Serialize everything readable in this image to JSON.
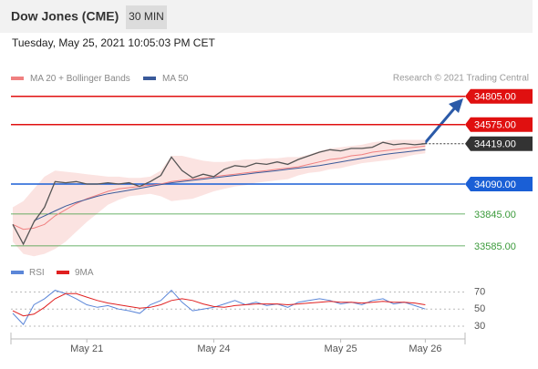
{
  "header": {
    "title": "Dow Jones (CME)",
    "interval": "30 MIN",
    "timestamp": "Tuesday, May 25, 2021 10:05:03 PM CET",
    "credit": "Research © 2021 Trading Central"
  },
  "chart_data": [
    {
      "type": "line",
      "categories": [
        null,
        null,
        null,
        null,
        null,
        null,
        null,
        "May 21",
        null,
        null,
        null,
        null,
        null,
        null,
        null,
        null,
        null,
        null,
        null,
        "May 24",
        null,
        null,
        null,
        null,
        null,
        null,
        null,
        null,
        null,
        null,
        null,
        "May 25",
        null,
        null,
        null,
        null,
        null,
        null,
        null,
        "May 26"
      ],
      "close": {
        "color": "#555555",
        "values": [
          33760,
          33600,
          33780,
          33900,
          34110,
          34100,
          34110,
          34090,
          34090,
          34100,
          34090,
          34100,
          34070,
          34110,
          34160,
          34310,
          34200,
          34140,
          34170,
          34150,
          34210,
          34240,
          34230,
          34260,
          34250,
          34270,
          34250,
          34290,
          34320,
          34350,
          34370,
          34360,
          34380,
          34380,
          34390,
          34430,
          34410,
          34420,
          34410,
          34419
        ]
      },
      "series": [
        {
          "name": "MA 20 + Bollinger Bands",
          "color": "#f08080",
          "values": [
            33760,
            33720,
            33730,
            33760,
            33830,
            33880,
            33930,
            33970,
            34000,
            34030,
            34050,
            34060,
            34070,
            34080,
            34090,
            34110,
            34120,
            34130,
            34140,
            34150,
            34160,
            34170,
            34180,
            34190,
            34200,
            34210,
            34220,
            34230,
            34250,
            34270,
            34290,
            34300,
            34320,
            34330,
            34350,
            34360,
            34370,
            34380,
            34390,
            34400
          ]
        },
        {
          "name": "MA 50",
          "color": "#3a5a9a",
          "values": [
            null,
            null,
            33790,
            33830,
            33870,
            33910,
            33940,
            33965,
            33990,
            34010,
            34025,
            34040,
            34055,
            34070,
            34085,
            34100,
            34110,
            34120,
            34130,
            34140,
            34150,
            34160,
            34170,
            34180,
            34190,
            34200,
            34210,
            34220,
            34230,
            34240,
            34255,
            34270,
            34285,
            34300,
            34315,
            34330,
            34340,
            34350,
            34360,
            34370
          ]
        }
      ],
      "bands": {
        "color": "#fbe3e1",
        "upper": [
          33900,
          33950,
          34050,
          34150,
          34200,
          34190,
          34180,
          34170,
          34160,
          34150,
          34150,
          34140,
          34140,
          34150,
          34200,
          34320,
          34320,
          34300,
          34280,
          34270,
          34270,
          34280,
          34290,
          34290,
          34300,
          34300,
          34310,
          34310,
          34330,
          34360,
          34380,
          34390,
          34400,
          34410,
          34430,
          34440,
          34450,
          34450,
          34450,
          34450
        ],
        "lower": [
          33620,
          33520,
          33500,
          33520,
          33560,
          33620,
          33700,
          33780,
          33850,
          33920,
          33960,
          33990,
          34000,
          34010,
          33990,
          33950,
          33960,
          33970,
          34000,
          34030,
          34050,
          34070,
          34080,
          34100,
          34110,
          34120,
          34130,
          34160,
          34180,
          34190,
          34210,
          34220,
          34240,
          34260,
          34270,
          34280,
          34290,
          34310,
          34330,
          34340
        ]
      },
      "ylim": [
        33480,
        34900
      ],
      "levels": [
        {
          "value": 34805,
          "label": "34805.00",
          "color": "#e01010",
          "line": "solid",
          "box": true
        },
        {
          "value": 34575,
          "label": "34575.00",
          "color": "#e01010",
          "line": "solid",
          "box": true
        },
        {
          "value": 34419,
          "label": "34419.00",
          "color": "#333333",
          "line": "dotted",
          "box": true
        },
        {
          "value": 34090,
          "label": "34090.00",
          "color": "#1a5fd6",
          "line": "solid",
          "box": true
        },
        {
          "value": 33845,
          "label": "33845.00",
          "color": "#3a9a3a",
          "line": "solid",
          "box": false
        },
        {
          "value": 33585,
          "label": "33585.00",
          "color": "#3a9a3a",
          "line": "solid",
          "box": false
        }
      ]
    },
    {
      "type": "line",
      "series": [
        {
          "name": "RSI",
          "color": "#5b86d8",
          "values": [
            45,
            32,
            55,
            62,
            72,
            68,
            62,
            55,
            52,
            54,
            50,
            48,
            45,
            55,
            60,
            72,
            58,
            48,
            50,
            52,
            56,
            60,
            55,
            58,
            54,
            56,
            52,
            58,
            60,
            62,
            60,
            56,
            58,
            55,
            60,
            62,
            56,
            58,
            54,
            50
          ]
        },
        {
          "name": "9MA",
          "color": "#e02020",
          "values": [
            48,
            42,
            44,
            52,
            62,
            68,
            68,
            64,
            60,
            57,
            55,
            53,
            51,
            52,
            55,
            60,
            62,
            60,
            56,
            53,
            52,
            54,
            55,
            56,
            56,
            56,
            55,
            56,
            57,
            58,
            59,
            58,
            58,
            57,
            58,
            59,
            58,
            58,
            57,
            55
          ]
        }
      ],
      "ylim": [
        15,
        95
      ],
      "yticks": [
        70,
        50,
        30
      ]
    }
  ]
}
